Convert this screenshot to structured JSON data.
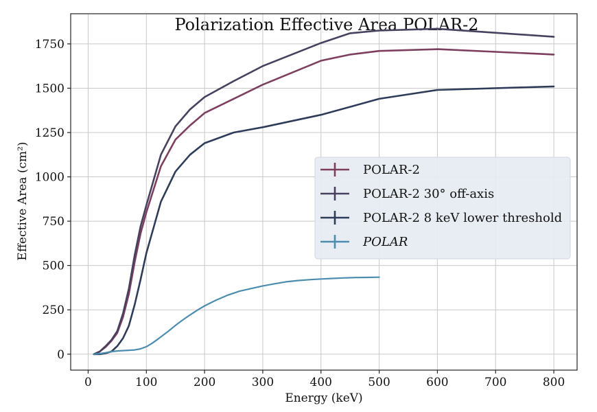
{
  "chart_data": {
    "type": "line",
    "title": "Polarization Effective Area POLAR-2",
    "xlabel": "Energy (keV)",
    "ylabel": "Effective Area (cm²)",
    "xlim": [
      -30,
      840
    ],
    "ylim": [
      -90,
      1920
    ],
    "xticks": [
      0,
      100,
      200,
      300,
      400,
      500,
      600,
      700,
      800
    ],
    "yticks": [
      0,
      250,
      500,
      750,
      1000,
      1250,
      1500,
      1750
    ],
    "grid": true,
    "legend_position": "center-right",
    "series": [
      {
        "name": "POLAR-2",
        "color": "#7e3f5e",
        "x": [
          10,
          20,
          30,
          40,
          50,
          60,
          70,
          80,
          90,
          100,
          125,
          150,
          175,
          200,
          250,
          300,
          400,
          450,
          500,
          600,
          800
        ],
        "y": [
          0,
          15,
          40,
          75,
          120,
          210,
          340,
          520,
          680,
          800,
          1060,
          1210,
          1290,
          1360,
          1440,
          1520,
          1655,
          1690,
          1710,
          1720,
          1690
        ]
      },
      {
        "name": "POLAR-2 30° off-axis",
        "color": "#48405f",
        "x": [
          10,
          20,
          30,
          40,
          50,
          60,
          70,
          80,
          90,
          100,
          125,
          150,
          175,
          200,
          250,
          300,
          400,
          450,
          500,
          600,
          800
        ],
        "y": [
          0,
          15,
          45,
          80,
          130,
          230,
          370,
          560,
          720,
          840,
          1125,
          1285,
          1380,
          1450,
          1540,
          1625,
          1755,
          1810,
          1825,
          1835,
          1790
        ]
      },
      {
        "name": "POLAR-2 8 keV lower threshold",
        "color": "#2e3c59",
        "x": [
          10,
          20,
          30,
          40,
          50,
          60,
          70,
          80,
          90,
          100,
          125,
          150,
          175,
          200,
          250,
          300,
          400,
          450,
          500,
          600,
          800
        ],
        "y": [
          0,
          0,
          5,
          15,
          45,
          90,
          160,
          280,
          420,
          570,
          860,
          1030,
          1125,
          1190,
          1250,
          1280,
          1350,
          1395,
          1440,
          1490,
          1510
        ]
      },
      {
        "name": "POLAR",
        "color": "#4a8daf",
        "x": [
          10,
          20,
          30,
          40,
          50,
          60,
          70,
          80,
          90,
          100,
          110,
          120,
          130,
          140,
          150,
          160,
          170,
          180,
          190,
          200,
          220,
          240,
          260,
          280,
          300,
          320,
          340,
          360,
          380,
          400,
          420,
          440,
          460,
          480,
          500
        ],
        "y": [
          0,
          3,
          8,
          14,
          18,
          20,
          22,
          24,
          30,
          42,
          62,
          85,
          110,
          135,
          162,
          187,
          210,
          232,
          253,
          272,
          305,
          333,
          355,
          370,
          385,
          397,
          408,
          415,
          420,
          424,
          427,
          430,
          432,
          433,
          434
        ]
      }
    ]
  }
}
